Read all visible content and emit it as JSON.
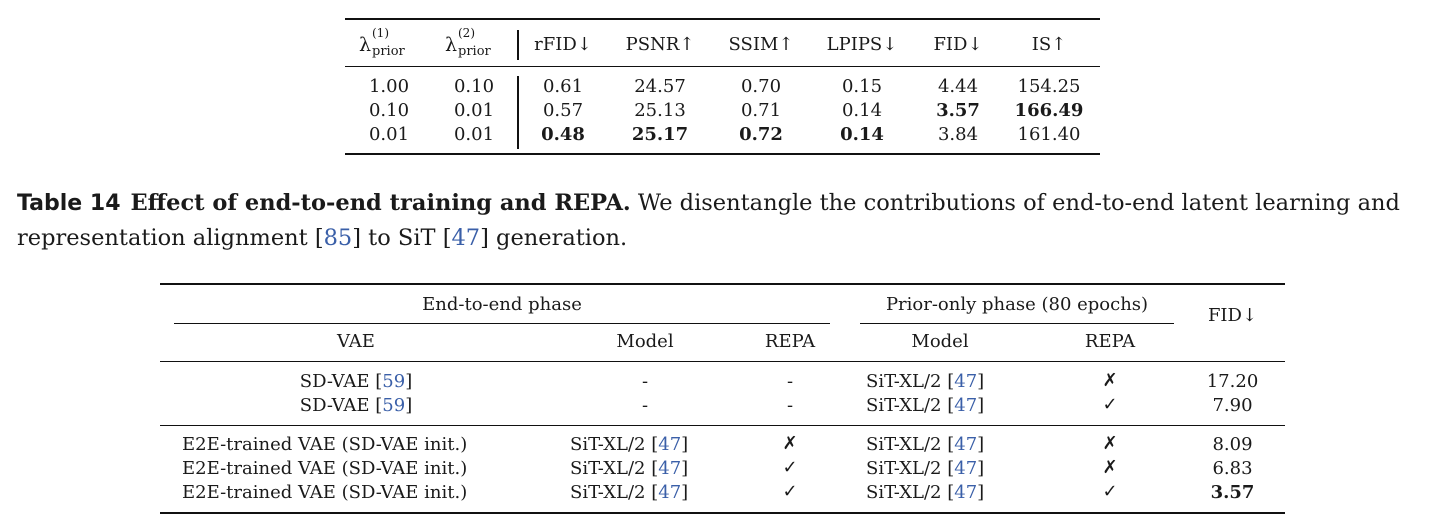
{
  "table_top": {
    "headers": {
      "lambda1": {
        "symbol": "λ",
        "sup": "(1)",
        "sub": "prior"
      },
      "lambda2": {
        "symbol": "λ",
        "sup": "(2)",
        "sub": "prior"
      },
      "rfid": "rFID↓",
      "psnr": "PSNR↑",
      "ssim": "SSIM↑",
      "lpips": "LPIPS↓",
      "fid": "FID↓",
      "is": "IS↑"
    },
    "rows": [
      {
        "l1": "1.00",
        "l2": "0.10",
        "rfid": "0.61",
        "psnr": "24.57",
        "ssim": "0.70",
        "lpips": "0.15",
        "fid": "4.44",
        "is": "154.25"
      },
      {
        "l1": "0.10",
        "l2": "0.01",
        "rfid": "0.57",
        "psnr": "25.13",
        "ssim": "0.71",
        "lpips": "0.14",
        "fid": "3.57",
        "is": "166.49"
      },
      {
        "l1": "0.01",
        "l2": "0.01",
        "rfid": "0.48",
        "psnr": "25.17",
        "ssim": "0.72",
        "lpips": "0.14",
        "fid": "3.84",
        "is": "161.40"
      }
    ]
  },
  "caption": {
    "label": "Table 14",
    "title": "Effect of end-to-end training and REPA.",
    "text_a": "We disentangle the contributions of end-to-end latent learning and representation alignment [",
    "ref_a": "85",
    "text_b": "] to SiT [",
    "ref_b": "47",
    "text_c": "] generation."
  },
  "table_bottom": {
    "group_e2e": "End-to-end phase",
    "group_prior": "Prior-only phase (80 epochs)",
    "col_fid": "FID↓",
    "col_vae": "VAE",
    "col_model": "Model",
    "col_repa": "REPA",
    "col_model2": "Model",
    "col_repa2": "REPA",
    "rows": [
      {
        "vae": "SD-VAE [",
        "vae_ref": "59",
        "vae_end": "]",
        "model": "-",
        "model_ref": "",
        "model_end": "",
        "repa": "-",
        "model2": "SiT-XL/2 [",
        "model2_ref": "47",
        "model2_end": "]",
        "repa2": "✗",
        "fid": "17.20"
      },
      {
        "vae": "SD-VAE [",
        "vae_ref": "59",
        "vae_end": "]",
        "model": "-",
        "model_ref": "",
        "model_end": "",
        "repa": "-",
        "model2": "SiT-XL/2 [",
        "model2_ref": "47",
        "model2_end": "]",
        "repa2": "✓",
        "fid": "7.90"
      },
      {
        "vae": "E2E-trained VAE (SD-VAE init.)",
        "vae_ref": "",
        "vae_end": "",
        "model": "SiT-XL/2 [",
        "model_ref": "47",
        "model_end": "]",
        "repa": "✗",
        "model2": "SiT-XL/2 [",
        "model2_ref": "47",
        "model2_end": "]",
        "repa2": "✗",
        "fid": "8.09"
      },
      {
        "vae": "E2E-trained VAE (SD-VAE init.)",
        "vae_ref": "",
        "vae_end": "",
        "model": "SiT-XL/2 [",
        "model_ref": "47",
        "model_end": "]",
        "repa": "✓",
        "model2": "SiT-XL/2 [",
        "model2_ref": "47",
        "model2_end": "]",
        "repa2": "✗",
        "fid": "6.83"
      },
      {
        "vae": "E2E-trained VAE (SD-VAE init.)",
        "vae_ref": "",
        "vae_end": "",
        "model": "SiT-XL/2 [",
        "model_ref": "47",
        "model_end": "]",
        "repa": "✓",
        "model2": "SiT-XL/2 [",
        "model2_ref": "47",
        "model2_end": "]",
        "repa2": "✓",
        "fid": "3.57"
      }
    ]
  }
}
